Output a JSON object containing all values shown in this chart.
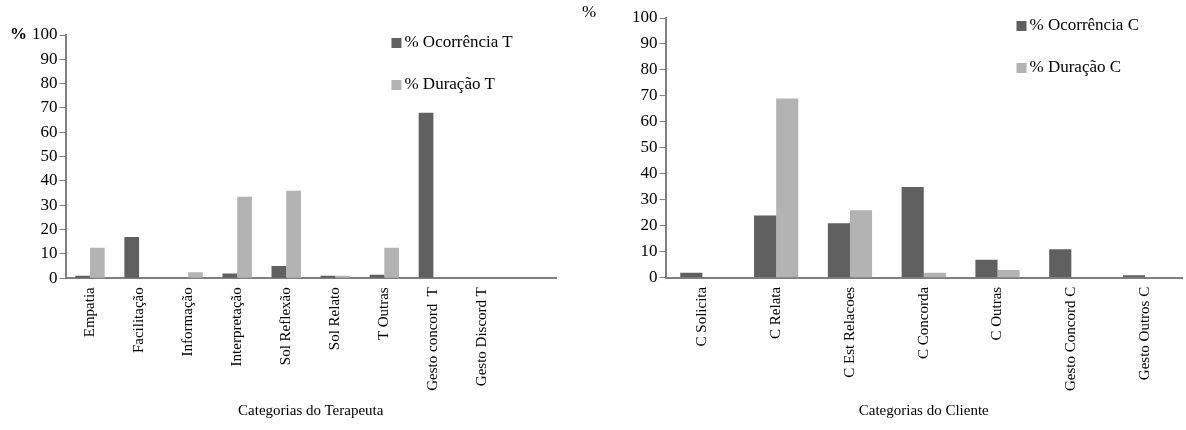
{
  "chart_data": [
    {
      "type": "bar",
      "ylabel": "%",
      "xlabel": "Categorias do Terapeuta",
      "categories": [
        "Empatia",
        "Facilitação",
        "Informação",
        "Interpretação",
        "Sol Reflexão",
        "Sol Relato",
        "T Outras",
        "Gesto concord  T",
        "Gesto Discord T",
        null
      ],
      "series": [
        {
          "name": "% Ocorrência T",
          "color": "#606060",
          "values": [
            1,
            17,
            0,
            2,
            5,
            1,
            1.5,
            68,
            0,
            null
          ]
        },
        {
          "name": "% Duração T",
          "color": "#b3b3b3",
          "values": [
            12.5,
            0,
            2.5,
            33.5,
            36,
            1,
            12.5,
            0,
            0,
            null
          ]
        }
      ],
      "ylim": [
        0,
        100
      ],
      "yticks": [
        0,
        10,
        20,
        30,
        40,
        50,
        60,
        70,
        80,
        90,
        100
      ],
      "grid": false,
      "legend": "top right"
    },
    {
      "type": "bar",
      "ylabel": "%",
      "xlabel": "Categorias do Cliente",
      "categories": [
        "C Solicita",
        "C Relata",
        "C Est Relacoes",
        "C Concorda",
        "C Outras",
        "Gesto Concord C",
        "Gesto Outros C"
      ],
      "series": [
        {
          "name": "% Ocorrência C",
          "color": "#606060",
          "values": [
            2,
            24,
            21,
            35,
            7,
            11,
            1
          ]
        },
        {
          "name": "% Duração C",
          "color": "#b3b3b3",
          "values": [
            0,
            69,
            26,
            2,
            3,
            0,
            0
          ]
        }
      ],
      "ylim": [
        0,
        100
      ],
      "yticks": [
        0,
        10,
        20,
        30,
        40,
        50,
        60,
        70,
        80,
        90,
        100
      ],
      "grid": false,
      "legend": "top right"
    }
  ]
}
